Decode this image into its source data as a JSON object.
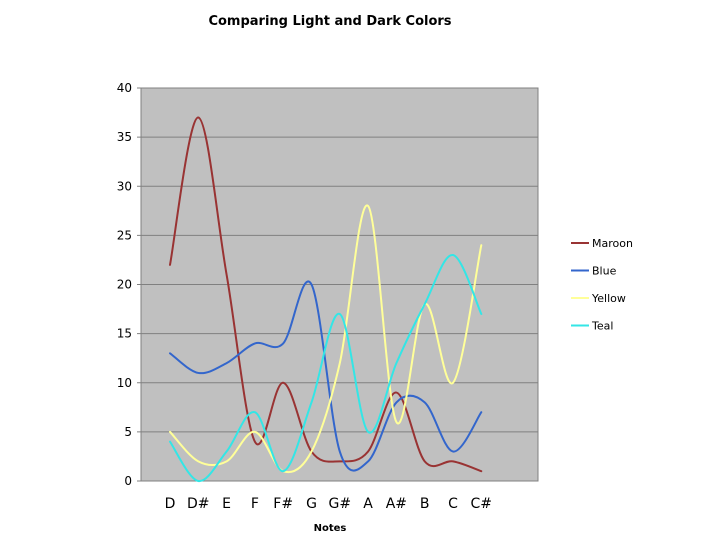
{
  "chart_data": {
    "type": "line",
    "title": "Comparing Light and Dark Colors",
    "xlabel": "Notes",
    "ylabel": "",
    "categories": [
      "D",
      "D#",
      "E",
      "F",
      "F#",
      "G",
      "G#",
      "A",
      "A#",
      "B",
      "C",
      "C#"
    ],
    "ylim": [
      0,
      40
    ],
    "yticks": [
      0,
      5,
      10,
      15,
      20,
      25,
      30,
      35,
      40
    ],
    "grid": true,
    "legend_position": "right",
    "plot_background": "#c0c0c0",
    "series": [
      {
        "name": "Maroon",
        "color": "#993333",
        "values": [
          22,
          37,
          21,
          4,
          10,
          3,
          2,
          3,
          9,
          2,
          2,
          1
        ]
      },
      {
        "name": "Blue",
        "color": "#3366cc",
        "values": [
          13,
          11,
          12,
          14,
          14,
          20,
          3,
          2,
          8,
          8,
          3,
          7
        ]
      },
      {
        "name": "Yellow",
        "color": "#ffff99",
        "values": [
          5,
          2,
          2,
          5,
          1,
          3,
          12,
          28,
          6,
          18,
          10,
          24
        ]
      },
      {
        "name": "Teal",
        "color": "#33e6e6",
        "values": [
          4,
          0,
          3,
          7,
          1,
          8,
          17,
          5,
          12,
          18,
          23,
          17
        ]
      }
    ]
  }
}
